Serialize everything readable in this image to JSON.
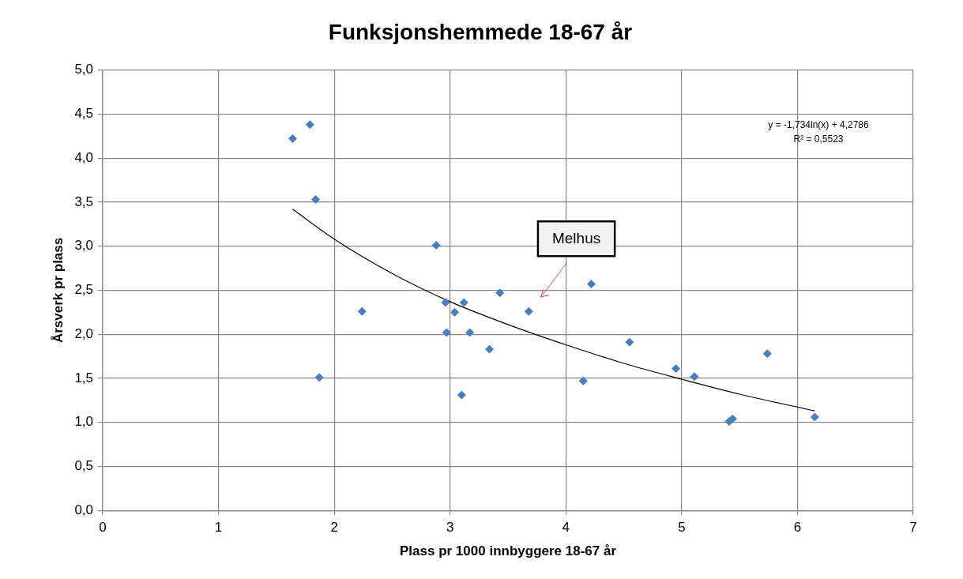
{
  "chart_data": {
    "type": "scatter",
    "title": "Funksjonshemmede 18-67 år",
    "xlabel": "Plass pr 1000 innbyggere 18-67 år",
    "ylabel": "Årsverk pr plass",
    "xlim": [
      0,
      7
    ],
    "xticks": [
      0,
      1,
      2,
      3,
      4,
      5,
      6,
      7
    ],
    "ylim": [
      0,
      5
    ],
    "yticks": [
      {
        "value": 0,
        "label": "0,0"
      },
      {
        "value": 0.5,
        "label": "0,5"
      },
      {
        "value": 1,
        "label": "1,0"
      },
      {
        "value": 1.5,
        "label": "1,5"
      },
      {
        "value": 2,
        "label": "2,0"
      },
      {
        "value": 2.5,
        "label": "2,5"
      },
      {
        "value": 3,
        "label": "3,0"
      },
      {
        "value": 3.5,
        "label": "3,5"
      },
      {
        "value": 4,
        "label": "4,0"
      },
      {
        "value": 4.5,
        "label": "4,5"
      },
      {
        "value": 5,
        "label": "5,0"
      }
    ],
    "grid": true,
    "legend": false,
    "marker": "diamond",
    "series": [
      {
        "color": "#4a7ebb",
        "x": [
          1.64,
          1.79,
          1.84,
          1.87,
          2.24,
          2.88,
          2.96,
          3.12,
          3.04,
          3.43,
          3.68,
          2.97,
          3.17,
          3.34,
          3.1,
          4.22,
          4.55,
          4.15,
          4.95,
          5.11,
          5.74,
          5.41,
          5.44,
          6.15
        ],
        "values": [
          4.22,
          4.38,
          3.53,
          1.51,
          2.26,
          3.01,
          2.36,
          2.36,
          2.25,
          2.47,
          2.26,
          2.02,
          2.02,
          1.83,
          1.31,
          2.57,
          1.91,
          1.47,
          1.61,
          1.52,
          1.78,
          1.01,
          1.04,
          1.06
        ]
      },
      {
        "type": "line",
        "color": "#000000",
        "marker": "none",
        "x": [
          1.64,
          2,
          2.5,
          3,
          3.5,
          4,
          4.5,
          5,
          5.5,
          6.15
        ],
        "values": [
          3.42,
          3.08,
          2.69,
          2.37,
          2.11,
          1.88,
          1.67,
          1.49,
          1.32,
          1.13
        ]
      }
    ],
    "annotations": [
      "y = -1,734ln(x) + 4,2786",
      "R² = 0,5523",
      "Melhus"
    ]
  }
}
